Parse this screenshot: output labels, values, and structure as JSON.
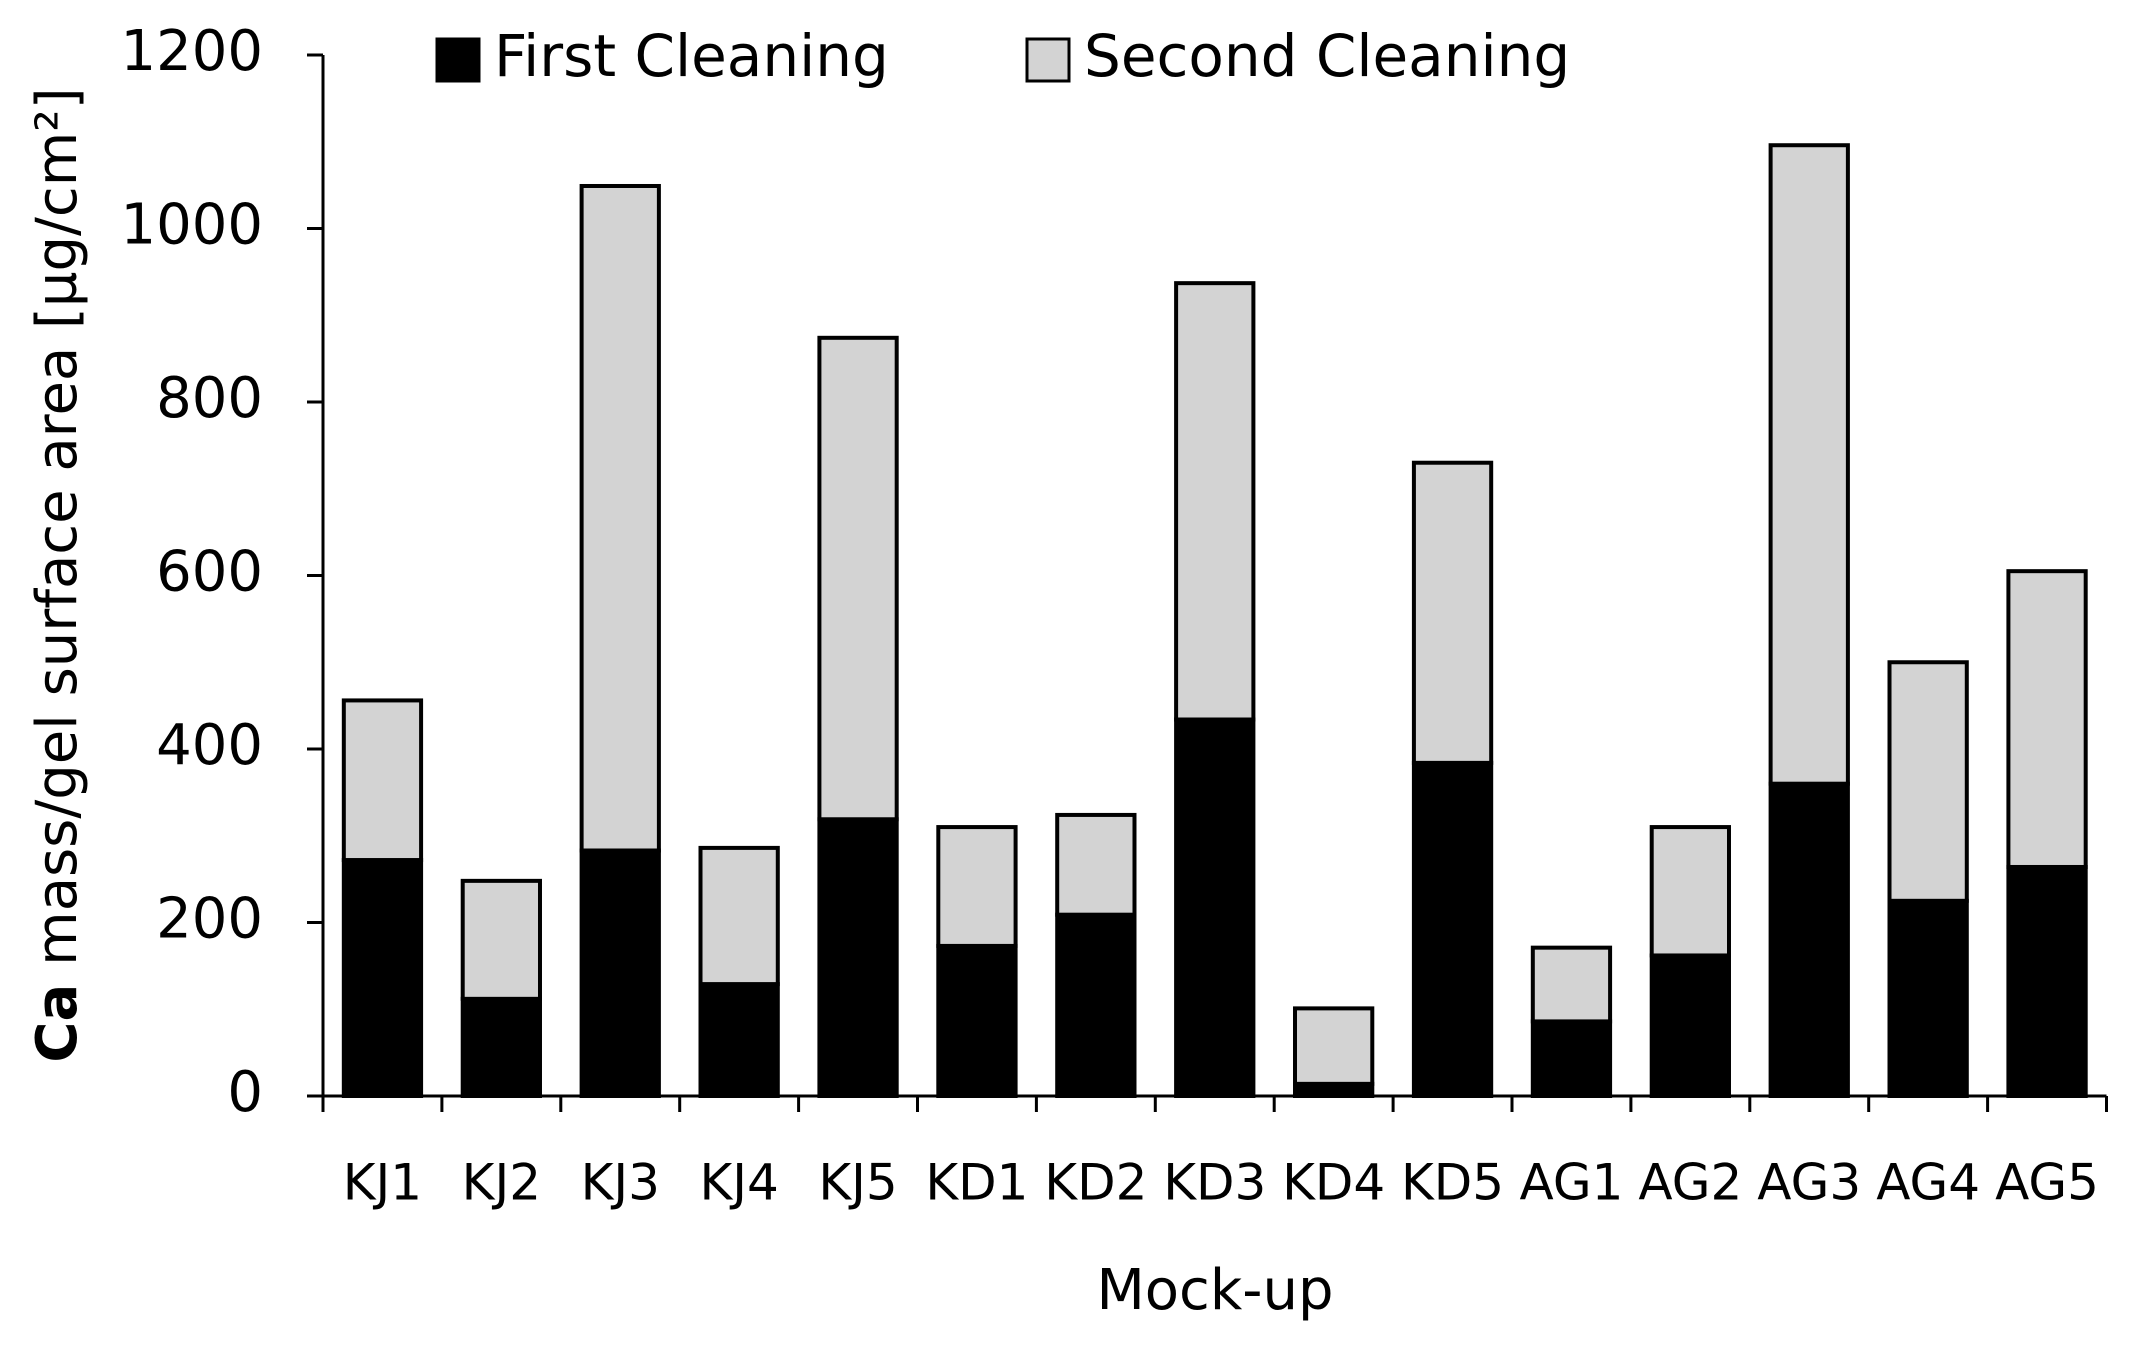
{
  "chart_data": {
    "type": "stacked_bar",
    "ylabel_bold": "Ca",
    "ylabel": "mass/gel surface area [µg/cm²]",
    "xlabel": "Mock-up",
    "categories": [
      "KJ1",
      "KJ2",
      "KJ3",
      "KJ4",
      "KJ5",
      "KD1",
      "KD2",
      "KD3",
      "KD4",
      "KD5",
      "AG1",
      "AG2",
      "AG3",
      "AG4",
      "AG5"
    ],
    "series": [
      {
        "name": "First Cleaning",
        "color": "#000000",
        "values": [
          272,
          112,
          283,
          129,
          319,
          173,
          209,
          434,
          14,
          384,
          86,
          162,
          360,
          225,
          264
        ]
      },
      {
        "name": "Second Cleaning",
        "color": "#d3d3d3",
        "values": [
          184,
          136,
          766,
          157,
          555,
          137,
          115,
          503,
          87,
          346,
          85,
          148,
          736,
          275,
          341
        ]
      }
    ],
    "ylim": [
      0,
      1200
    ],
    "yticks": [
      0,
      200,
      400,
      600,
      800,
      1000,
      1200
    ],
    "grid": false,
    "legend": "top"
  }
}
